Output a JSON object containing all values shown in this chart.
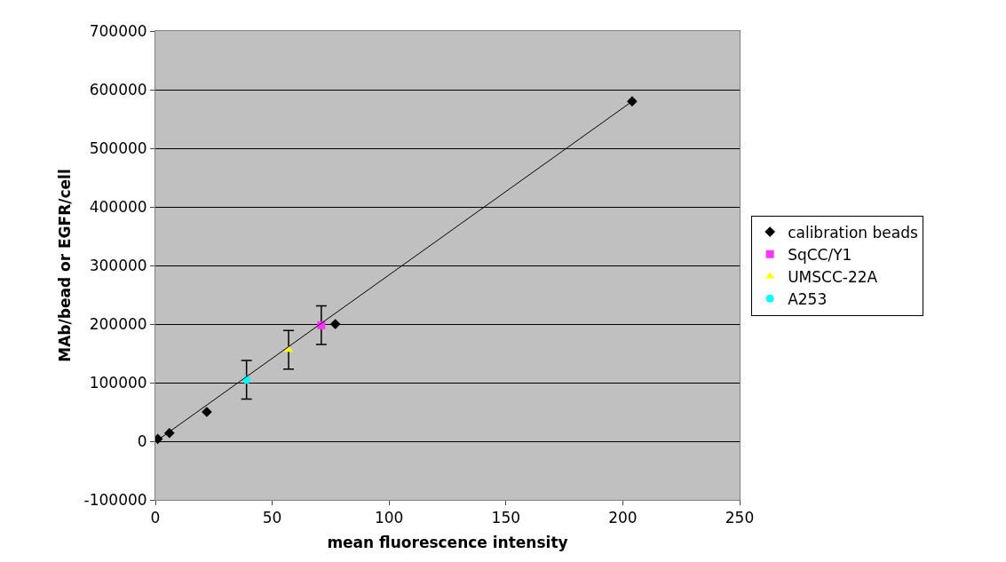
{
  "chart_data": {
    "type": "scatter",
    "xlabel": "mean fluorescence intensity",
    "ylabel": "MAb/bead or EGFR/cell",
    "series": [
      {
        "name": "calibration beads",
        "color": "#000000",
        "marker": "diamond",
        "x": [
          1,
          6,
          22,
          77,
          204
        ],
        "values": [
          4000,
          14000,
          50000,
          200000,
          580000
        ]
      },
      {
        "name": "SqCC/Y1",
        "color": "#ff33ff",
        "marker": "square",
        "x": [
          71
        ],
        "values": [
          198000
        ],
        "errors": [
          33000
        ]
      },
      {
        "name": "UMSCC-22A",
        "color": "#ffff00",
        "marker": "triangle",
        "x": [
          57
        ],
        "values": [
          156000
        ],
        "errors": [
          33000
        ]
      },
      {
        "name": "A253",
        "color": "#00ffff",
        "marker": "circle",
        "x": [
          39
        ],
        "values": [
          105000
        ],
        "errors": [
          33000
        ]
      },
      {
        "type": "line",
        "color": "#000000",
        "marker": "none",
        "x": [
          1,
          204
        ],
        "values": [
          2000,
          580000
        ]
      }
    ],
    "xlim": [
      0,
      250
    ],
    "xticks": [
      0,
      50,
      100,
      150,
      200,
      250
    ],
    "ylim": [
      -100000,
      700000
    ],
    "yticks": [
      -100000,
      0,
      100000,
      200000,
      300000,
      400000,
      500000,
      600000,
      700000
    ],
    "grid": "y",
    "legend": "right"
  }
}
